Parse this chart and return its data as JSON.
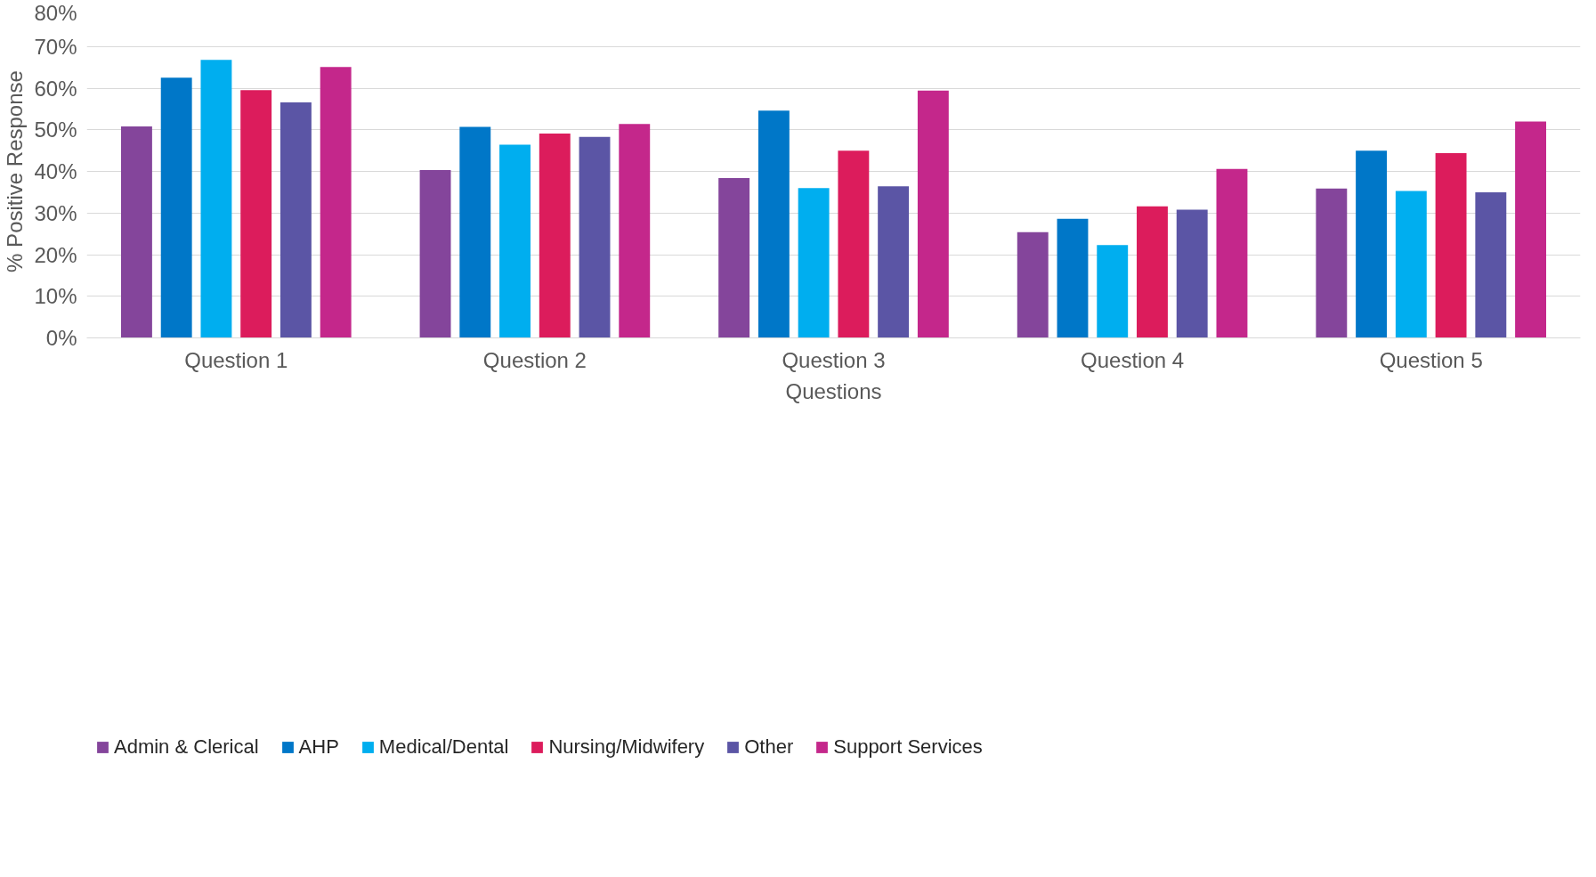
{
  "chart_data": {
    "type": "bar",
    "xlabel": "Questions",
    "ylabel": "% Positive Response",
    "categories": [
      "Question 1",
      "Question 2",
      "Question 3",
      "Question 4",
      "Question 5"
    ],
    "series": [
      {
        "name": "Admin & Clerical",
        "color": "#84459b",
        "values": [
          50.8,
          40.3,
          38.4,
          25.4,
          35.9
        ]
      },
      {
        "name": "AHP",
        "color": "#0077c8",
        "values": [
          62.5,
          50.7,
          54.6,
          28.6,
          45.0
        ]
      },
      {
        "name": "Medical/Dental",
        "color": "#00aeef",
        "values": [
          66.8,
          46.4,
          36.0,
          22.3,
          35.3
        ]
      },
      {
        "name": "Nursing/Midwifery",
        "color": "#dc1c5c",
        "values": [
          59.5,
          49.1,
          45.0,
          31.6,
          44.4
        ]
      },
      {
        "name": "Other",
        "color": "#5b55a5",
        "values": [
          56.6,
          48.3,
          36.4,
          30.8,
          35.0
        ]
      },
      {
        "name": "Support Services",
        "color": "#c4278b",
        "values": [
          65.1,
          51.4,
          59.4,
          40.6,
          52.0
        ]
      }
    ],
    "ylim": [
      0,
      80
    ],
    "yticks": [
      {
        "value": 0,
        "label": "0%"
      },
      {
        "value": 10,
        "label": "10%"
      },
      {
        "value": 20,
        "label": "20%"
      },
      {
        "value": 30,
        "label": "30%"
      },
      {
        "value": 40,
        "label": "40%"
      },
      {
        "value": 50,
        "label": "50%"
      },
      {
        "value": 60,
        "label": "60%"
      },
      {
        "value": 70,
        "label": "70%"
      },
      {
        "value": 80,
        "label": "80%"
      }
    ],
    "grid": "y",
    "legend": "bottom left"
  }
}
